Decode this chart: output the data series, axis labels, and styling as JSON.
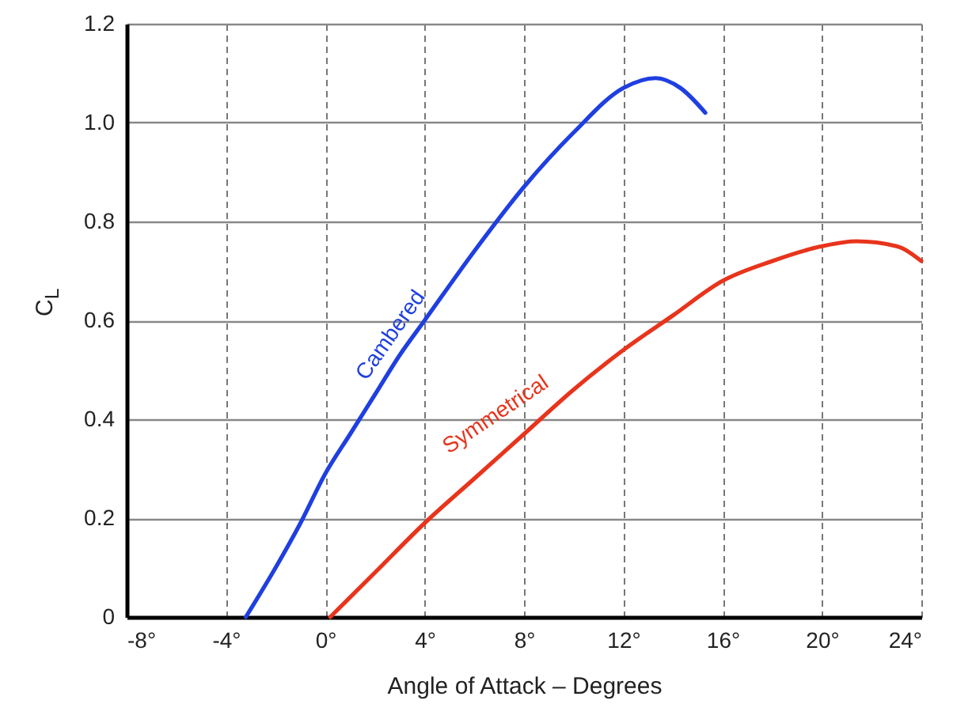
{
  "chart_data": {
    "type": "line",
    "xlabel": "Angle of Attack – Degrees",
    "ylabel": "C$_{L}$",
    "xlim": [
      -8,
      24
    ],
    "ylim": [
      0,
      1.2
    ],
    "xticks": [
      {
        "value": -8,
        "label": "-8°"
      },
      {
        "value": -4,
        "label": "-4°"
      },
      {
        "value": 0,
        "label": "0°"
      },
      {
        "value": 4,
        "label": "4°"
      },
      {
        "value": 8,
        "label": "8°"
      },
      {
        "value": 12,
        "label": "12°"
      },
      {
        "value": 16,
        "label": "16°"
      },
      {
        "value": 20,
        "label": "20°"
      },
      {
        "value": 24,
        "label": "24°"
      }
    ],
    "yticks": [
      0,
      0.2,
      0.4,
      0.6,
      0.8,
      {
        "value": 1.0,
        "label": "1.0"
      },
      1.2
    ],
    "grid": true,
    "marker": "none",
    "line_style": "solid",
    "series": [
      {
        "name": "Cambered",
        "color": "#1f3fe0",
        "x": [
          -3.2,
          -2,
          -1,
          0,
          1,
          2,
          3,
          4,
          6,
          8,
          10,
          12,
          13.3,
          14.3,
          15.3
        ],
        "values": [
          0,
          0.1,
          0.19,
          0.29,
          0.37,
          0.45,
          0.53,
          0.6,
          0.74,
          0.87,
          0.98,
          1.07,
          1.09,
          1.07,
          1.02
        ]
      },
      {
        "name": "Symmetrical",
        "color": "#e8341c",
        "x": [
          0.2,
          2,
          4,
          6,
          8,
          10,
          12,
          14,
          16,
          18,
          20,
          21.4,
          23,
          24
        ],
        "values": [
          0,
          0.09,
          0.19,
          0.28,
          0.37,
          0.46,
          0.54,
          0.61,
          0.68,
          0.72,
          0.75,
          0.76,
          0.75,
          0.72
        ]
      }
    ]
  }
}
